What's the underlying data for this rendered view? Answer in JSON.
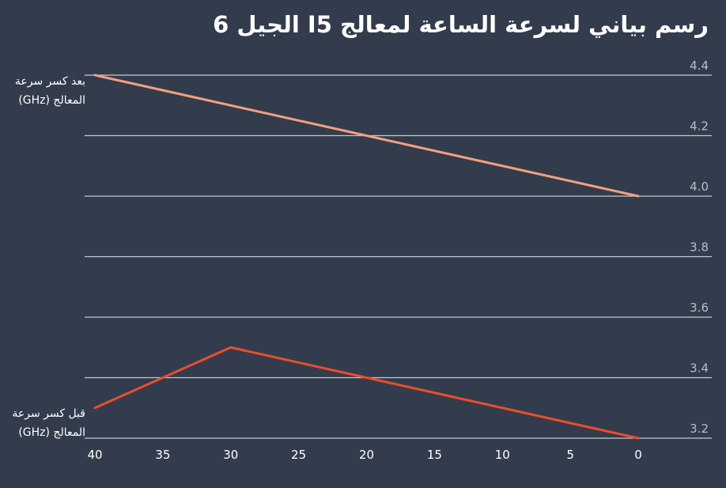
{
  "chart_data": {
    "type": "line",
    "title": "رسم بياني لسرعة الساعة لمعالج I5 الجيل 6",
    "x": [
      40,
      30,
      20,
      0
    ],
    "x_ticks": [
      "40",
      "35",
      "30",
      "25",
      "20",
      "15",
      "10",
      "5",
      "0"
    ],
    "xlim": [
      40,
      0
    ],
    "y_ticks": [
      "4.4",
      "4.2",
      "4.0",
      "3.8",
      "3.6",
      "3.4",
      "3.2"
    ],
    "ylim": [
      3.2,
      4.4
    ],
    "grid": true,
    "series": [
      {
        "name": "بعد كسر سرعة المعالج (GHz)",
        "color": "#f4a07c",
        "x": [
          40,
          20,
          0
        ],
        "values": [
          4.4,
          4.2,
          4.0
        ]
      },
      {
        "name": "قبل كسر سرعة المعالج (GHz)",
        "color": "#ea4e2a",
        "x": [
          40,
          30,
          20,
          0
        ],
        "values": [
          3.3,
          3.5,
          3.4,
          3.2
        ]
      }
    ]
  }
}
